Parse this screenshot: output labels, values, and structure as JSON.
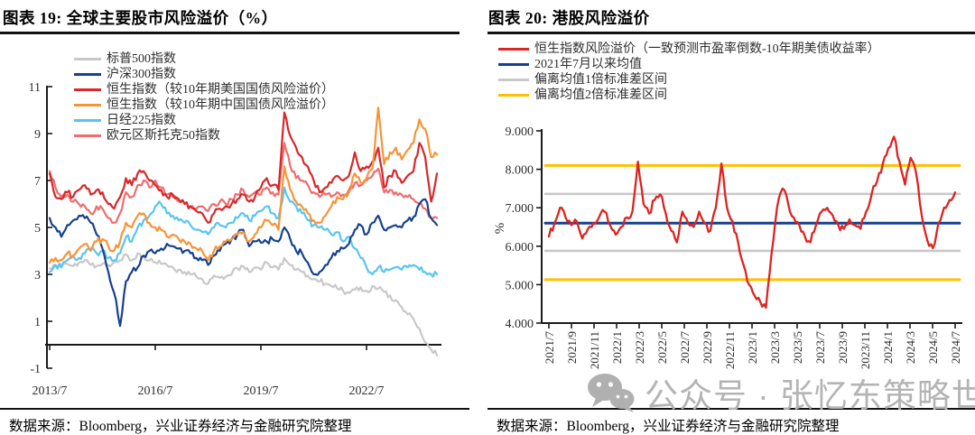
{
  "watermark": {
    "icon": "wechat-icon",
    "text": "公众号 · 张忆东策略世界",
    "color": "#b4b4b4"
  },
  "chart_data": [
    {
      "id": "global-equity-risk-premium",
      "type": "line",
      "title": "图表 19:  全球主要股市风险溢价（%）",
      "source": "数据来源：Bloomberg，兴业证券经济与金融研究院整理",
      "x_start": "2013/7",
      "x_step_months": 2,
      "x_tick_labels": [
        "2013/7",
        "2016/7",
        "2019/7",
        "2022/7"
      ],
      "y_ticks": [
        -1,
        1,
        3,
        5,
        7,
        9,
        11
      ],
      "ylim": [
        -1,
        11
      ],
      "grid": false,
      "legend_position": "top-left-inside",
      "series": [
        {
          "name": "标普500指数",
          "color": "#c8c8c8",
          "values": [
            3.25,
            3.4,
            3.3,
            3.45,
            3.35,
            3.5,
            3.6,
            3.4,
            3.35,
            3.45,
            3.4,
            3.5,
            3.6,
            3.85,
            3.6,
            3.9,
            3.75,
            3.6,
            3.5,
            3.45,
            3.4,
            3.3,
            3.2,
            3.1,
            3.0,
            2.9,
            2.8,
            2.6,
            2.95,
            2.85,
            2.9,
            3.0,
            3.25,
            3.35,
            3.1,
            3.3,
            3.2,
            3.5,
            3.3,
            3.2,
            3.7,
            3.4,
            3.2,
            3.1,
            2.95,
            2.8,
            2.7,
            2.6,
            2.5,
            2.4,
            2.3,
            2.2,
            2.35,
            2.45,
            2.3,
            2.5,
            2.4,
            2.25,
            2.1,
            1.9,
            1.6,
            1.3,
            1.1,
            0.7,
            0.1,
            -0.2,
            -0.45
          ]
        },
        {
          "name": "沪深300指数",
          "color": "#17418f",
          "values": [
            5.4,
            5.0,
            4.6,
            5.1,
            5.3,
            5.5,
            5.4,
            5.2,
            4.7,
            4.1,
            3.1,
            2.2,
            0.8,
            2.7,
            3.1,
            3.3,
            3.8,
            4.0,
            3.9,
            4.1,
            4.3,
            4.2,
            4.1,
            4.0,
            3.9,
            3.7,
            3.6,
            3.4,
            3.8,
            4.0,
            4.3,
            4.5,
            4.7,
            4.9,
            4.2,
            4.4,
            4.35,
            4.4,
            4.5,
            4.4,
            5.0,
            4.5,
            4.0,
            3.9,
            3.5,
            3.0,
            3.1,
            3.4,
            3.7,
            4.0,
            4.1,
            4.3,
            4.9,
            5.1,
            4.7,
            5.2,
            5.5,
            4.9,
            5.0,
            5.1,
            5.0,
            5.3,
            5.45,
            6.0,
            6.2,
            5.4,
            5.1
          ]
        },
        {
          "name": "恒生指数（较10年期美国国债风险溢价）",
          "color": "#d7282b",
          "values": [
            7.3,
            6.3,
            6.2,
            6.5,
            6.3,
            6.6,
            6.8,
            6.4,
            6.6,
            6.5,
            6.0,
            5.8,
            6.3,
            7.1,
            6.8,
            7.3,
            7.4,
            7.0,
            6.8,
            6.6,
            6.3,
            6.4,
            6.2,
            6.0,
            5.9,
            5.7,
            5.6,
            5.2,
            5.6,
            5.8,
            5.9,
            6.0,
            6.2,
            6.4,
            6.1,
            6.3,
            6.7,
            7.1,
            6.8,
            6.6,
            9.9,
            8.9,
            8.4,
            8.0,
            7.6,
            7.0,
            6.5,
            6.7,
            6.9,
            7.2,
            7.0,
            7.2,
            8.2,
            7.4,
            7.6,
            7.8,
            8.4,
            6.7,
            7.2,
            7.4,
            6.9,
            7.2,
            7.4,
            8.6,
            8.0,
            6.1,
            7.3
          ]
        },
        {
          "name": "恒生指数（较10年期中国国债风险溢价）",
          "color": "#f79438",
          "values": [
            3.5,
            3.7,
            3.6,
            3.9,
            3.8,
            4.1,
            4.3,
            4.0,
            4.4,
            4.5,
            4.2,
            4.0,
            4.4,
            5.2,
            5.0,
            5.5,
            5.6,
            5.2,
            5.0,
            4.9,
            4.6,
            4.7,
            4.5,
            4.4,
            4.3,
            4.1,
            4.0,
            3.6,
            4.0,
            4.2,
            4.4,
            4.5,
            4.7,
            4.8,
            4.4,
            4.7,
            5.0,
            5.3,
            5.1,
            4.9,
            7.6,
            6.6,
            6.1,
            5.9,
            5.6,
            5.3,
            5.2,
            5.5,
            5.9,
            6.3,
            6.2,
            6.5,
            7.3,
            6.9,
            7.1,
            7.5,
            10.1,
            7.7,
            8.2,
            8.4,
            7.9,
            8.3,
            8.6,
            9.6,
            9.2,
            8.0,
            8.1
          ]
        },
        {
          "name": "日经225指数",
          "color": "#58c5f1",
          "values": [
            3.1,
            3.4,
            3.3,
            3.6,
            3.8,
            3.7,
            3.9,
            4.1,
            3.9,
            4.0,
            3.7,
            3.6,
            3.9,
            4.6,
            4.4,
            5.0,
            5.3,
            5.5,
            5.9,
            6.0,
            5.6,
            5.5,
            5.3,
            5.2,
            5.1,
            4.9,
            4.8,
            4.7,
            5.0,
            5.1,
            5.0,
            5.2,
            5.4,
            5.6,
            5.3,
            5.5,
            5.7,
            5.9,
            5.6,
            5.4,
            6.7,
            6.1,
            5.9,
            5.6,
            5.3,
            5.1,
            5.0,
            4.9,
            4.7,
            4.8,
            4.4,
            4.6,
            4.1,
            3.7,
            3.3,
            3.0,
            3.3,
            3.1,
            3.2,
            3.3,
            3.2,
            3.3,
            3.4,
            3.2,
            3.1,
            3.0,
            3.0
          ]
        },
        {
          "name": "欧元区斯托克50指数",
          "color": "#ee6d6d",
          "values": [
            7.4,
            6.7,
            6.3,
            6.4,
            6.1,
            6.0,
            5.9,
            5.6,
            5.9,
            5.8,
            5.4,
            5.2,
            5.6,
            6.5,
            6.3,
            6.8,
            7.0,
            6.7,
            7.0,
            6.7,
            6.4,
            6.3,
            6.1,
            6.0,
            5.9,
            5.8,
            5.9,
            5.7,
            6.0,
            6.1,
            6.0,
            6.2,
            6.4,
            6.6,
            6.3,
            6.5,
            6.4,
            6.7,
            6.5,
            6.4,
            8.6,
            7.6,
            7.1,
            7.0,
            6.8,
            6.5,
            6.3,
            6.4,
            6.3,
            6.5,
            6.4,
            6.6,
            6.9,
            6.8,
            7.0,
            7.2,
            7.5,
            6.5,
            6.6,
            6.5,
            6.4,
            6.3,
            6.2,
            6.0,
            5.8,
            5.4,
            5.4
          ]
        }
      ]
    },
    {
      "id": "hk-equity-risk-premium",
      "type": "line",
      "title": "图表 20:  港股风险溢价",
      "source": "数据来源：Bloomberg，兴业证券经济与金融研究院整理",
      "ylabel": "%",
      "x_start": "2021/7",
      "points_per_month": 2,
      "x_tick_labels": [
        "2021/7",
        "2021/9",
        "2021/11",
        "2022/1",
        "2022/3",
        "2022/5",
        "2022/7",
        "2022/9",
        "2022/11",
        "2023/1",
        "2023/3",
        "2023/5",
        "2023/7",
        "2023/9",
        "2023/11",
        "2024/1",
        "2024/3",
        "2024/5",
        "2024/7"
      ],
      "y_ticks": [
        "4.000",
        "5.000",
        "6.000",
        "7.000",
        "8.000",
        "9.000"
      ],
      "ylim": [
        4,
        9
      ],
      "grid": false,
      "legend_position": "top",
      "series": [
        {
          "name": "恒生指数风险溢价（一致预测市盈率倒数-10年期美债收益率）",
          "color": "#dc2420",
          "values": [
            6.25,
            6.6,
            7.0,
            6.75,
            6.55,
            6.65,
            6.2,
            6.45,
            6.6,
            6.75,
            6.9,
            6.55,
            6.3,
            6.5,
            6.75,
            6.9,
            8.2,
            7.1,
            6.85,
            7.2,
            7.35,
            6.85,
            6.4,
            6.1,
            6.9,
            6.6,
            6.5,
            6.9,
            6.6,
            6.4,
            7.0,
            8.15,
            7.0,
            6.65,
            6.1,
            5.5,
            5.0,
            4.7,
            4.55,
            4.4,
            5.8,
            7.0,
            7.5,
            7.1,
            6.75,
            6.55,
            6.25,
            6.1,
            6.55,
            6.9,
            7.0,
            6.8,
            6.55,
            6.45,
            6.7,
            6.55,
            6.45,
            6.9,
            7.35,
            7.7,
            8.15,
            8.55,
            8.85,
            8.2,
            7.6,
            8.3,
            7.9,
            6.8,
            6.15,
            5.95,
            6.6,
            7.0,
            7.2,
            7.4
          ]
        }
      ],
      "ref_lines": [
        {
          "name": "2021年7月以来均值",
          "color": "#17418f",
          "values": [
            6.6
          ],
          "width": 3
        },
        {
          "name": "偏离均值1倍标准差区间",
          "color": "#c8c8c8",
          "values": [
            7.36,
            5.88
          ],
          "width": 2.6
        },
        {
          "name": "偏离均值2倍标准差区间",
          "color": "#ffc000",
          "values": [
            8.1,
            5.13
          ],
          "width": 3
        }
      ]
    }
  ]
}
